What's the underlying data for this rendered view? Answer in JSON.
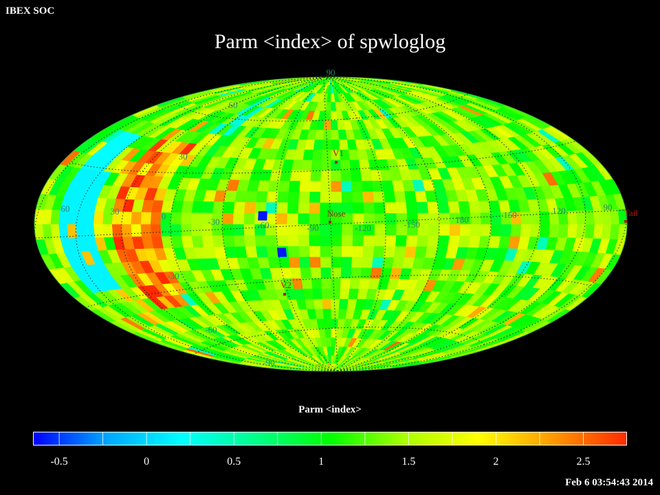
{
  "header": {
    "soc_label": "IBEX SOC",
    "title": "Parm  <index> of spwloglog"
  },
  "map": {
    "projection": "hammer-aitoff",
    "graticule_color": "#2b8a6e",
    "marker_color": "#b01c1c",
    "lat_labels": [
      "90",
      "60",
      "30",
      "60",
      "30",
      "0",
      "-30",
      "-60",
      "-90",
      "-120",
      "-150",
      "180",
      "150",
      "120",
      "90",
      "-30",
      "-60",
      "-90"
    ],
    "markers": [
      {
        "label": "V1"
      },
      {
        "label": "Nose"
      },
      {
        "label": "V2"
      },
      {
        "label": "Tail"
      }
    ]
  },
  "colorbar": {
    "title": "Parm  <index>",
    "min": -0.65,
    "max": 2.75,
    "ticks": [
      "-0.5",
      "0",
      "0.5",
      "1",
      "1.5",
      "2",
      "2.5"
    ],
    "colors": [
      "#0000ff",
      "#00a8ff",
      "#00ffff",
      "#00ff88",
      "#00ff00",
      "#a8ff00",
      "#ffff00",
      "#ff9900",
      "#ff2a00"
    ]
  },
  "footer": {
    "timestamp": "Feb  6 03:54:43 2014"
  }
}
